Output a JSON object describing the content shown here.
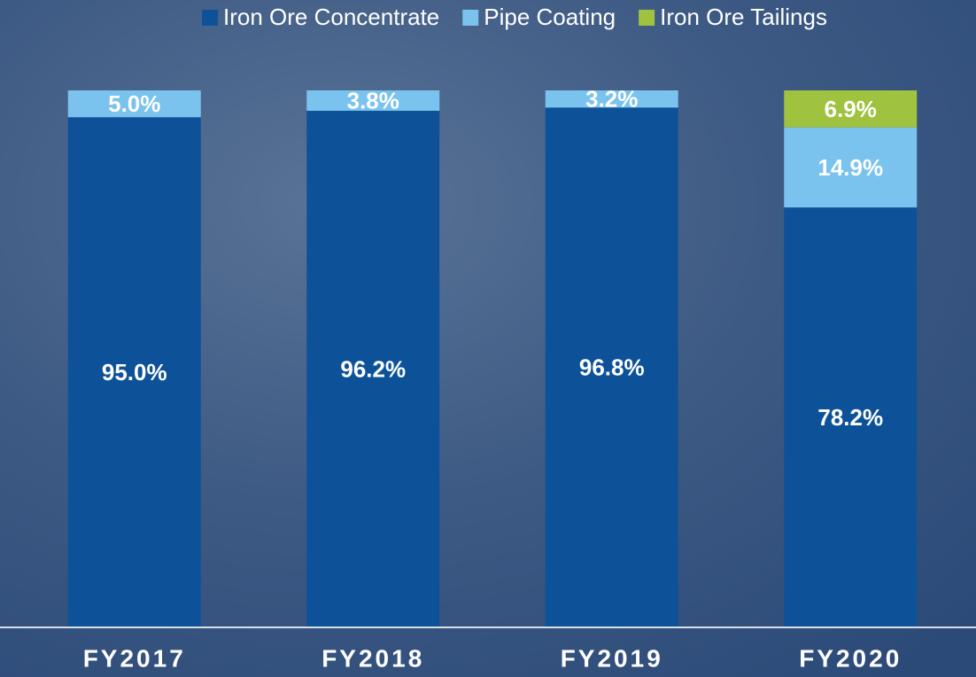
{
  "chart_data": {
    "type": "stacked_bar",
    "categories": [
      "FY2017",
      "FY2018",
      "FY2019",
      "FY2020"
    ],
    "series": [
      {
        "name": "Iron Ore Concentrate",
        "color": "#0d5299",
        "values": [
          95.0,
          96.2,
          96.8,
          78.2
        ],
        "value_labels": [
          "95.0%",
          "96.2%",
          "96.8%",
          "78.2%"
        ]
      },
      {
        "name": "Pipe Coating",
        "color": "#79c3ee",
        "values": [
          5.0,
          3.8,
          3.2,
          14.9
        ],
        "value_labels": [
          "5.0%",
          "3.8%",
          "3.2%",
          "14.9%"
        ]
      },
      {
        "name": "Iron Ore Tailings",
        "color": "#9fc23f",
        "values": [
          null,
          null,
          null,
          6.9
        ],
        "value_labels": [
          null,
          null,
          null,
          "6.9%"
        ]
      }
    ],
    "ylim": [
      0,
      100
    ],
    "legend": "top"
  }
}
